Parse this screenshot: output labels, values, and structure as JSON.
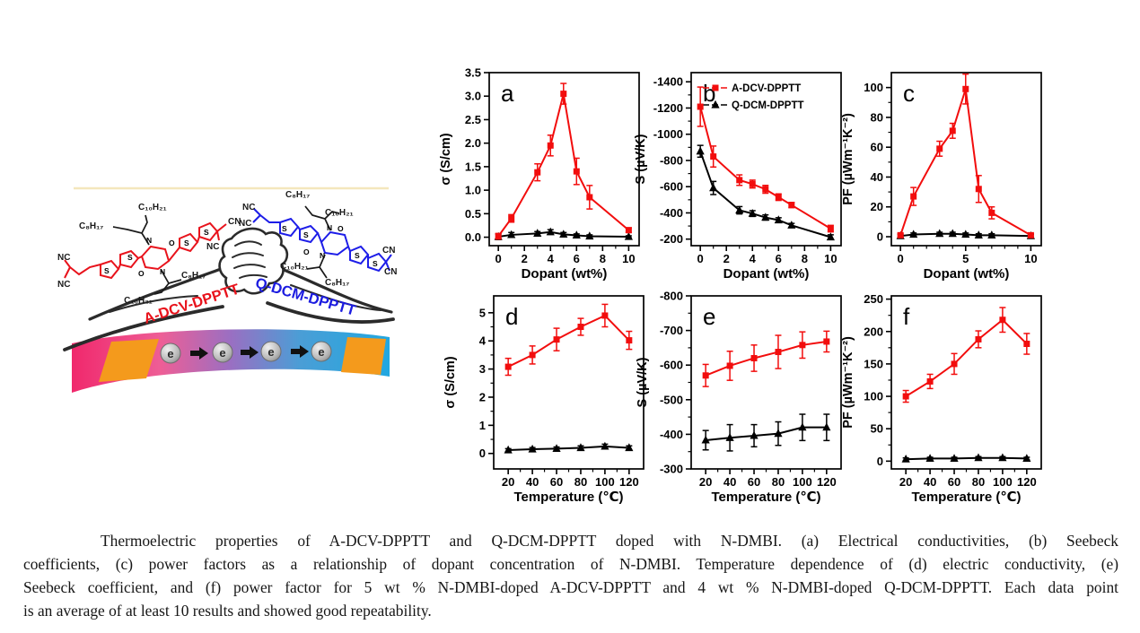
{
  "illustration": {
    "left_polymer": {
      "label": "A-DCV-DPPTT",
      "color": "#e8131c"
    },
    "right_polymer": {
      "label": "Q-DCM-DPPTT",
      "color": "#1c1ce0"
    },
    "formulas": {
      "c8h17": "C₈H₁₇",
      "c10h21": "C₁₀H₂₁",
      "nc": "NC",
      "cn": "CN",
      "s": "S",
      "n": "N",
      "o": "O"
    },
    "electron_symbol": "e",
    "electron_count": 4,
    "strip_colors": {
      "left": "#f02f6e",
      "mid": "#9a6fc2",
      "right": "#21a7e0",
      "electrode": "#f49a1c"
    }
  },
  "chart_data": [
    {
      "id": "a",
      "panel_label": "a",
      "type": "line",
      "xlabel": "Dopant (wt%)",
      "ylabel": "σ (S/cm)",
      "x": [
        0,
        1,
        3,
        4,
        5,
        6,
        7,
        10
      ],
      "xlim": [
        -0.7,
        10.8
      ],
      "xticks": [
        0,
        2,
        4,
        6,
        8,
        10
      ],
      "xminor": [
        1,
        3,
        5,
        7,
        9
      ],
      "ylim_top": 3.5,
      "ylim_bottom": -0.18,
      "yticks": [
        0,
        0.5,
        1,
        1.5,
        2,
        2.5,
        3,
        3.5
      ],
      "ytick_decimals": 1,
      "series": [
        {
          "name": "A-DCV-DPPTT",
          "color": "#f20d0d",
          "marker": "square",
          "y": [
            0.02,
            0.4,
            1.38,
            1.95,
            3.05,
            1.4,
            0.85,
            0.15
          ],
          "err": [
            0.06,
            0.08,
            0.18,
            0.22,
            0.22,
            0.28,
            0.25,
            0.05
          ]
        },
        {
          "name": "Q-DCM-DPPTT",
          "color": "#000000",
          "marker": "triangle",
          "y": [
            0.01,
            0.05,
            0.08,
            0.11,
            0.06,
            0.04,
            0.02,
            0.01
          ],
          "err": [
            0.06,
            0.05,
            0.04,
            0.05,
            0.04,
            0.03,
            0.03,
            0.02
          ]
        }
      ]
    },
    {
      "id": "b",
      "panel_label": "b",
      "type": "line",
      "xlabel": "Dopant (wt%)",
      "ylabel": "S (µV/K)",
      "ylabel_offset": 52,
      "legend_visible": true,
      "x": [
        0,
        1,
        3,
        4,
        5,
        6,
        7,
        10
      ],
      "xlim": [
        -0.7,
        10.8
      ],
      "xticks": [
        0,
        2,
        4,
        6,
        8,
        10
      ],
      "xminor": [
        1,
        3,
        5,
        7,
        9
      ],
      "ylim_top": -1470,
      "ylim_bottom": -150,
      "yticks": [
        -1400,
        -1200,
        -1000,
        -800,
        -600,
        -400,
        -200
      ],
      "yminor": [
        -1300,
        -1100,
        -900,
        -700,
        -500,
        -300
      ],
      "series": [
        {
          "name": "A-DCV-DPPTT",
          "color": "#f20d0d",
          "marker": "square",
          "y": [
            -1210,
            -830,
            -650,
            -620,
            -580,
            -520,
            -460,
            -280
          ],
          "err": [
            150,
            80,
            40,
            30,
            30,
            25,
            20,
            25
          ]
        },
        {
          "name": "Q-DCM-DPPTT",
          "color": "#000000",
          "marker": "triangle",
          "y": [
            -870,
            -590,
            -420,
            -395,
            -365,
            -345,
            -305,
            -215
          ],
          "err": [
            45,
            50,
            28,
            22,
            20,
            18,
            15,
            18
          ]
        }
      ]
    },
    {
      "id": "c",
      "panel_label": "c",
      "type": "line",
      "xlabel": "Dopant (wt%)",
      "ylabel": "PF (µWm⁻¹K⁻²)",
      "x": [
        0,
        1,
        3,
        4,
        5,
        6,
        7,
        10
      ],
      "xlim": [
        -0.7,
        10.8
      ],
      "xticks": [
        0,
        5,
        10
      ],
      "xminor": [
        1,
        2,
        3,
        4,
        6,
        7,
        8,
        9
      ],
      "ylim_top": 110,
      "ylim_bottom": -6,
      "yticks": [
        0,
        20,
        40,
        60,
        80,
        100
      ],
      "yminor": [
        10,
        30,
        50,
        70,
        90
      ],
      "series": [
        {
          "name": "A-DCV-DPPTT",
          "color": "#f20d0d",
          "marker": "square",
          "y": [
            1,
            27,
            59,
            71,
            99,
            32,
            16,
            1
          ],
          "err": [
            1,
            6,
            5,
            5,
            10,
            9,
            4,
            1
          ]
        },
        {
          "name": "Q-DCM-DPPTT",
          "color": "#000000",
          "marker": "triangle",
          "y": [
            0.5,
            1.5,
            2,
            2,
            1.5,
            1,
            1,
            0.5
          ],
          "err": [
            1,
            1,
            1,
            1,
            1,
            1,
            1,
            1
          ]
        }
      ]
    },
    {
      "id": "d",
      "panel_label": "d",
      "type": "line",
      "xlabel": "Temperature (℃)",
      "ylabel": "σ (S/cm)",
      "x": [
        20,
        40,
        60,
        80,
        100,
        120
      ],
      "xlim": [
        8,
        132
      ],
      "xticks": [
        20,
        40,
        60,
        80,
        100,
        120
      ],
      "xminor": [
        30,
        50,
        70,
        90,
        110
      ],
      "ylim_top": 5.6,
      "ylim_bottom": -0.55,
      "yticks": [
        0,
        1,
        2,
        3,
        4,
        5
      ],
      "yminor": [
        0.5,
        1.5,
        2.5,
        3.5,
        4.5
      ],
      "series": [
        {
          "name": "A-DCV-DPPTT",
          "color": "#f20d0d",
          "marker": "square",
          "y": [
            3.08,
            3.5,
            4.05,
            4.5,
            4.9,
            4.02
          ],
          "err": [
            0.3,
            0.32,
            0.4,
            0.3,
            0.4,
            0.32
          ]
        },
        {
          "name": "Q-DCM-DPPTT",
          "color": "#000000",
          "marker": "triangle",
          "y": [
            0.12,
            0.15,
            0.17,
            0.2,
            0.25,
            0.2
          ],
          "err": [
            0.05,
            0.06,
            0.06,
            0.07,
            0.08,
            0.07
          ]
        }
      ]
    },
    {
      "id": "e",
      "panel_label": "e",
      "type": "line",
      "xlabel": "Temperature (℃)",
      "ylabel": "S (µV/K)",
      "ylabel_offset": 50,
      "x": [
        20,
        40,
        60,
        80,
        100,
        120
      ],
      "xlim": [
        8,
        132
      ],
      "xticks": [
        20,
        40,
        60,
        80,
        100,
        120
      ],
      "xminor": [
        30,
        50,
        70,
        90,
        110
      ],
      "ylim_top": -800,
      "ylim_bottom": -300,
      "yticks": [
        -800,
        -700,
        -600,
        -500,
        -400,
        -300
      ],
      "yminor": [
        -750,
        -650,
        -550,
        -450,
        -350
      ],
      "series": [
        {
          "name": "A-DCV-DPPTT",
          "color": "#f20d0d",
          "marker": "square",
          "y": [
            -570,
            -598,
            -620,
            -638,
            -658,
            -668
          ],
          "err": [
            32,
            42,
            38,
            48,
            38,
            30
          ]
        },
        {
          "name": "Q-DCM-DPPTT",
          "color": "#000000",
          "marker": "triangle",
          "y": [
            -383,
            -390,
            -396,
            -402,
            -420,
            -420
          ],
          "err": [
            28,
            38,
            32,
            34,
            38,
            38
          ]
        }
      ]
    },
    {
      "id": "f",
      "panel_label": "f",
      "type": "line",
      "xlabel": "Temperature (℃)",
      "ylabel": "PF (µWm⁻¹K⁻²)",
      "x": [
        20,
        40,
        60,
        80,
        100,
        120
      ],
      "xlim": [
        8,
        132
      ],
      "xticks": [
        20,
        40,
        60,
        80,
        100,
        120
      ],
      "xminor": [
        30,
        50,
        70,
        90,
        110
      ],
      "ylim_top": 255,
      "ylim_bottom": -12,
      "yticks": [
        0,
        50,
        100,
        150,
        200,
        250
      ],
      "yminor": [
        25,
        75,
        125,
        175,
        225
      ],
      "series": [
        {
          "name": "A-DCV-DPPTT",
          "color": "#f20d0d",
          "marker": "square",
          "y": [
            100,
            123,
            150,
            188,
            218,
            181
          ],
          "err": [
            9,
            11,
            16,
            13,
            19,
            16
          ]
        },
        {
          "name": "Q-DCM-DPPTT",
          "color": "#000000",
          "marker": "triangle",
          "y": [
            3,
            4,
            4,
            5,
            5,
            4
          ],
          "err": [
            2,
            2,
            2,
            2,
            2,
            2
          ]
        }
      ]
    }
  ],
  "caption": {
    "lines": [
      "Thermoelectric properties of A-DCV-DPPTT and Q-DCM-DPPTT doped with N-DMBI. (a) Electrical conductivities, (b) Seebeck",
      "coefficients, (c) power factors as a relationship of dopant concentration of N-DMBI. Temperature dependence of (d) electric conductivity, (e)",
      "Seebeck coefficient, and (f) power factor for 5 wt % N-DMBI-doped A-DCV-DPPTT and 4 wt % N-DMBI-doped Q-DCM-DPPTT. Each data point",
      "is an average of at least 10 results and showed good repeatability."
    ]
  }
}
